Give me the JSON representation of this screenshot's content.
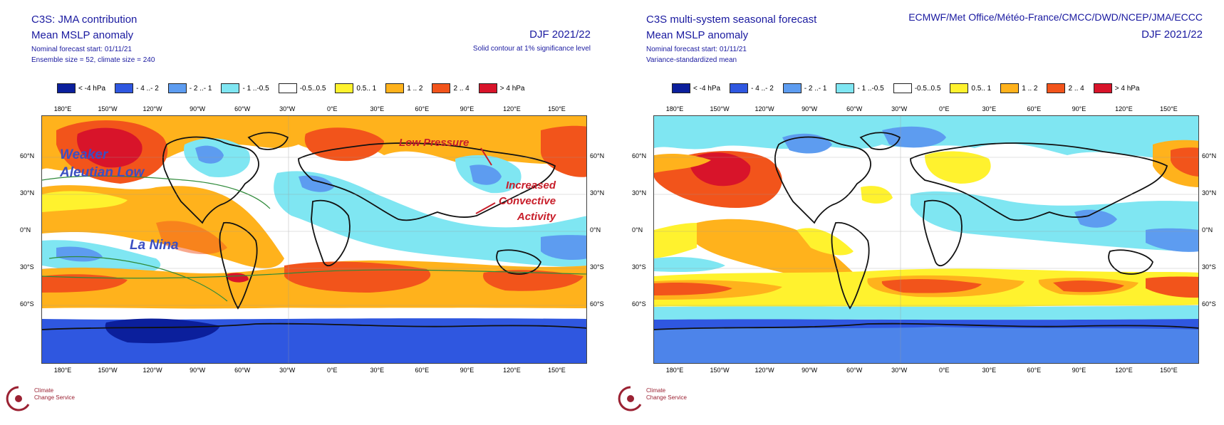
{
  "left": {
    "title_line1": "C3S: JMA contribution",
    "title_line2": "Mean MSLP anomaly",
    "subtitle1": "Nominal forecast start: 01/11/21",
    "subtitle2": "Ensemble size = 52, climate size = 240",
    "period": "DJF 2021/22",
    "significance": "Solid contour at 1% significance level",
    "annotations": {
      "aleutian": "Weaker\nAleutian Low",
      "la_nina": "La Nina",
      "low_pressure": "Low Pressure",
      "convective": "Increased\nConvective\nActivity"
    }
  },
  "right": {
    "title_line1": "C3S multi-system seasonal forecast",
    "title_line2": "Mean MSLP anomaly",
    "subtitle1": "Nominal forecast start: 01/11/21",
    "subtitle2": "Variance-standardized mean",
    "centres": "ECMWF/Met Office/Météo-France/CMCC/DWD/NCEP/JMA/ECCC",
    "period": "DJF 2021/22"
  },
  "legend": [
    {
      "label": "< -4 hPa",
      "color": "#0b1f9c"
    },
    {
      "label": "- 4 ..- 2",
      "color": "#2f57e0"
    },
    {
      "label": "- 2 ..- 1",
      "color": "#5d9cf0"
    },
    {
      "label": "- 1 ..-0.5",
      "color": "#7fe6f2"
    },
    {
      "label": "-0.5..0.5",
      "color": "#ffffff"
    },
    {
      "label": "0.5.. 1",
      "color": "#fff22e"
    },
    {
      "label": "1 .. 2",
      "color": "#ffb21c"
    },
    {
      "label": "2 .. 4",
      "color": "#f2541b"
    },
    {
      "label": "> 4 hPa",
      "color": "#d8142a"
    }
  ],
  "lon_labels": [
    "180°E",
    "150°W",
    "120°W",
    "90°W",
    "60°W",
    "30°W",
    "0°E",
    "30°E",
    "60°E",
    "90°E",
    "120°E",
    "150°E"
  ],
  "lat_labels": [
    "60°N",
    "30°N",
    "0°N",
    "30°S",
    "60°S"
  ],
  "logo_text": {
    "line1": "Climate",
    "line2": "Change Service"
  }
}
